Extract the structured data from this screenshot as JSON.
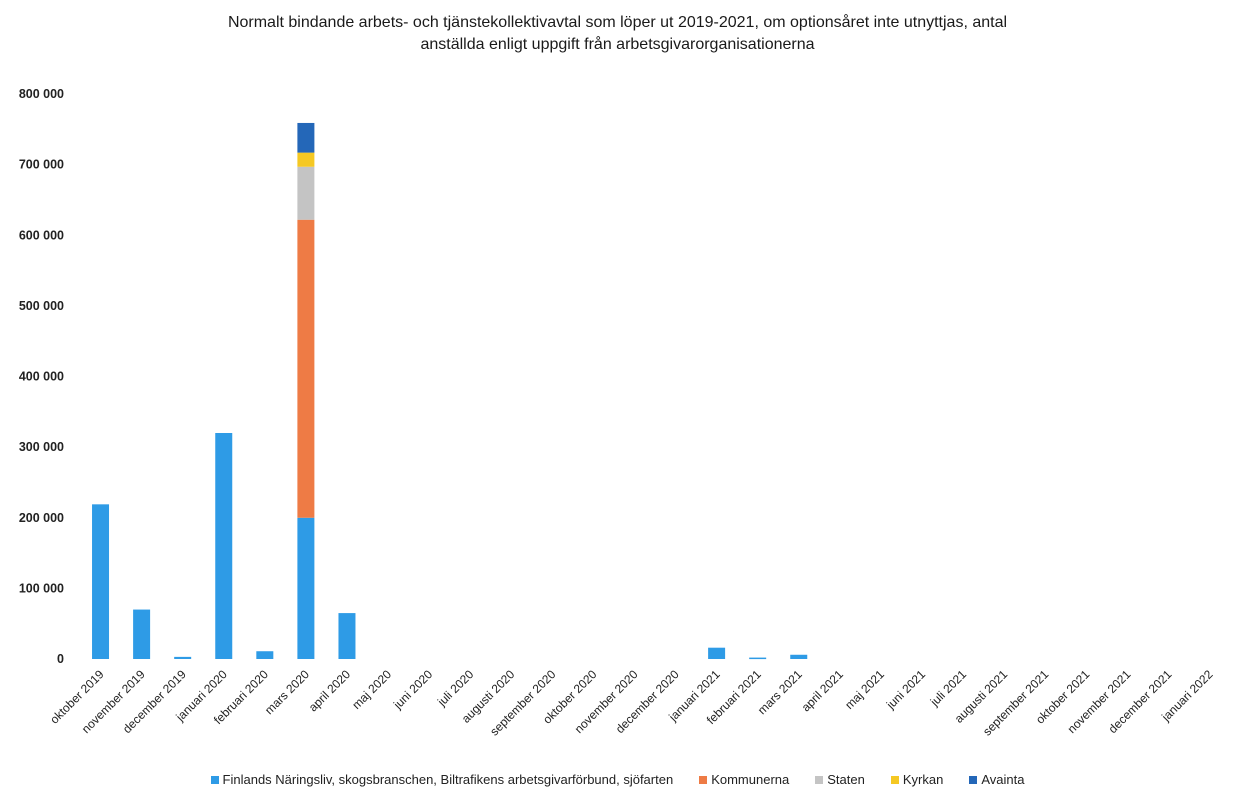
{
  "chart_data": {
    "type": "bar",
    "stacked": true,
    "title_lines": [
      "Normalt bindande arbets- och tjänstekollektivavtal som löper ut 2019-2021, om optionsåret inte utnyttjas, antal",
      "anställda enligt uppgift från arbetsgivarorganisationerna"
    ],
    "ylim": [
      0,
      800000
    ],
    "yticks": [
      0,
      100000,
      200000,
      300000,
      400000,
      500000,
      600000,
      700000,
      800000
    ],
    "ytick_labels": [
      "0",
      "100 000",
      "200 000",
      "300 000",
      "400 000",
      "500 000",
      "600 000",
      "700 000",
      "800 000"
    ],
    "grid": false,
    "legend_position": "bottom",
    "categories": [
      "oktober 2019",
      "november 2019",
      "december 2019",
      "januari 2020",
      "februari 2020",
      "mars 2020",
      "april 2020",
      "maj 2020",
      "juni 2020",
      "juli 2020",
      "augusti 2020",
      "september 2020",
      "oktober 2020",
      "november 2020",
      "december 2020",
      "januari 2021",
      "februari 2021",
      "mars 2021",
      "april 2021",
      "maj 2021",
      "juni 2021",
      "juli 2021",
      "augusti 2021",
      "september 2021",
      "oktober 2021",
      "november 2021",
      "december 2021",
      "januari 2022"
    ],
    "series": [
      {
        "name": "Finlands Näringsliv, skogsbranschen, Biltrafikens arbetsgivarförbund, sjöfarten",
        "color": "#2e9be6",
        "values": [
          219000,
          70000,
          3000,
          320000,
          11000,
          200000,
          65000,
          0,
          0,
          0,
          0,
          0,
          0,
          0,
          0,
          16000,
          2000,
          6000,
          0,
          0,
          0,
          0,
          0,
          0,
          0,
          0,
          0,
          0
        ]
      },
      {
        "name": "Kommunerna",
        "color": "#ee7b45",
        "values": [
          0,
          0,
          0,
          0,
          0,
          422000,
          0,
          0,
          0,
          0,
          0,
          0,
          0,
          0,
          0,
          0,
          0,
          0,
          0,
          0,
          0,
          0,
          0,
          0,
          0,
          0,
          0,
          0
        ]
      },
      {
        "name": "Staten",
        "color": "#c4c4c4",
        "values": [
          0,
          0,
          0,
          0,
          0,
          75000,
          0,
          0,
          0,
          0,
          0,
          0,
          0,
          0,
          0,
          0,
          0,
          0,
          0,
          0,
          0,
          0,
          0,
          0,
          0,
          0,
          0,
          0
        ]
      },
      {
        "name": "Kyrkan",
        "color": "#f5c823",
        "values": [
          0,
          0,
          0,
          0,
          0,
          20000,
          0,
          0,
          0,
          0,
          0,
          0,
          0,
          0,
          0,
          0,
          0,
          0,
          0,
          0,
          0,
          0,
          0,
          0,
          0,
          0,
          0,
          0
        ]
      },
      {
        "name": "Avainta",
        "color": "#2467b8",
        "values": [
          0,
          0,
          0,
          0,
          0,
          42000,
          0,
          0,
          0,
          0,
          0,
          0,
          0,
          0,
          0,
          0,
          0,
          0,
          0,
          0,
          0,
          0,
          0,
          0,
          0,
          0,
          0,
          0
        ]
      }
    ]
  }
}
